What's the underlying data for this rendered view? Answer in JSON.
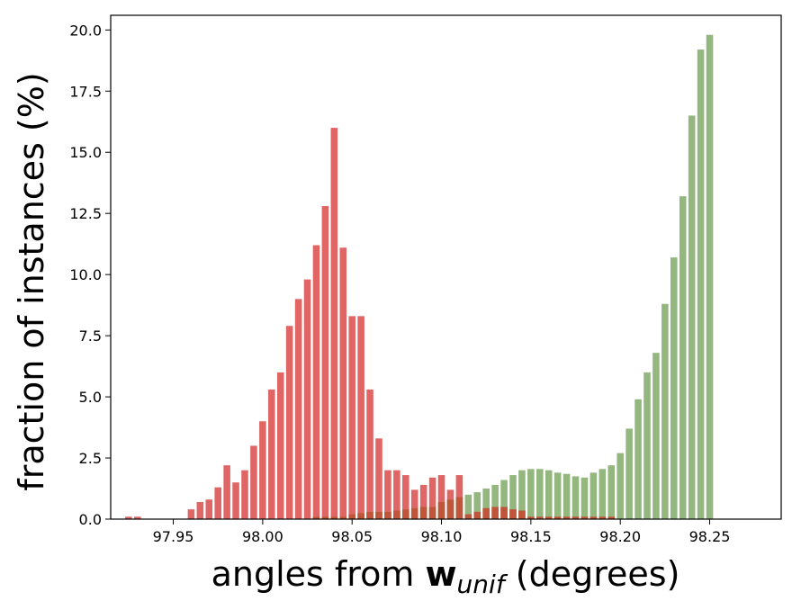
{
  "chart_data": {
    "type": "bar",
    "xlabel_prefix": "angles from",
    "xlabel_symbol": "w",
    "xlabel_subscript": "unif",
    "xlabel_suffix": "(degrees)",
    "ylabel": "fraction of instances (%)",
    "xlim": [
      97.915,
      98.29
    ],
    "ylim": [
      0,
      20.6
    ],
    "xticks": [
      97.95,
      98.0,
      98.05,
      98.1,
      98.15,
      98.2,
      98.25
    ],
    "xtick_labels": [
      "97.95",
      "98.00",
      "98.05",
      "98.10",
      "98.15",
      "98.20",
      "98.25"
    ],
    "yticks": [
      0,
      2.5,
      5,
      7.5,
      10,
      12.5,
      15,
      17.5,
      20
    ],
    "ytick_labels": [
      "0.0",
      "2.5",
      "5.0",
      "7.5",
      "10.0",
      "12.5",
      "15.0",
      "17.5",
      "20.0"
    ],
    "grid": false,
    "bar_width": 0.0038,
    "series": [
      {
        "color": "#e06666",
        "x": [
          97.925,
          97.93,
          97.96,
          97.965,
          97.97,
          97.975,
          97.98,
          97.985,
          97.99,
          97.995,
          98.0,
          98.005,
          98.01,
          98.015,
          98.02,
          98.025,
          98.03,
          98.035,
          98.04,
          98.045,
          98.05,
          98.055,
          98.06,
          98.065,
          98.07,
          98.075,
          98.08,
          98.085,
          98.09,
          98.095,
          98.1,
          98.105,
          98.11,
          98.115,
          98.12,
          98.125,
          98.13,
          98.135,
          98.14,
          98.145,
          98.15,
          98.155,
          98.16,
          98.165,
          98.17,
          98.175,
          98.18,
          98.185,
          98.19,
          98.195
        ],
        "values": [
          0.1,
          0.1,
          0.4,
          0.7,
          0.8,
          1.3,
          2.2,
          1.5,
          2.0,
          3.0,
          4.0,
          5.3,
          6.0,
          7.9,
          9.0,
          9.8,
          11.2,
          12.8,
          16.0,
          11.1,
          8.3,
          8.3,
          5.3,
          3.3,
          2.0,
          2.0,
          1.8,
          1.2,
          1.4,
          1.7,
          1.8,
          1.2,
          1.8,
          0.2,
          0.3,
          0.45,
          0.5,
          0.5,
          0.4,
          0.35,
          0.1,
          0.1,
          0.1,
          0.1,
          0.1,
          0.1,
          0.1,
          0.1,
          0.1,
          0.1
        ]
      },
      {
        "color": "#93b77f",
        "x": [
          98.03,
          98.035,
          98.04,
          98.045,
          98.05,
          98.055,
          98.06,
          98.065,
          98.07,
          98.075,
          98.08,
          98.085,
          98.09,
          98.095,
          98.1,
          98.105,
          98.11,
          98.115,
          98.12,
          98.125,
          98.13,
          98.135,
          98.14,
          98.145,
          98.15,
          98.155,
          98.16,
          98.165,
          98.17,
          98.175,
          98.18,
          98.185,
          98.19,
          98.195,
          98.2,
          98.205,
          98.21,
          98.215,
          98.22,
          98.225,
          98.23,
          98.235,
          98.24,
          98.245,
          98.25,
          98.255,
          98.26,
          98.265,
          98.27,
          98.275
        ],
        "values": [
          0.1,
          0.1,
          0.1,
          0.1,
          0.2,
          0.25,
          0.3,
          0.3,
          0.3,
          0.35,
          0.4,
          0.45,
          0.5,
          0.5,
          0.7,
          0.8,
          0.9,
          1.0,
          1.1,
          1.25,
          1.4,
          1.6,
          1.8,
          2.0,
          2.05,
          2.05,
          2.0,
          1.9,
          1.85,
          1.75,
          1.7,
          1.9,
          2.05,
          2.2,
          2.7,
          3.7,
          4.9,
          6.0,
          6.8,
          8.8,
          10.7,
          13.2,
          16.5,
          19.2,
          19.8,
          0,
          0,
          0,
          0,
          0
        ]
      }
    ]
  }
}
